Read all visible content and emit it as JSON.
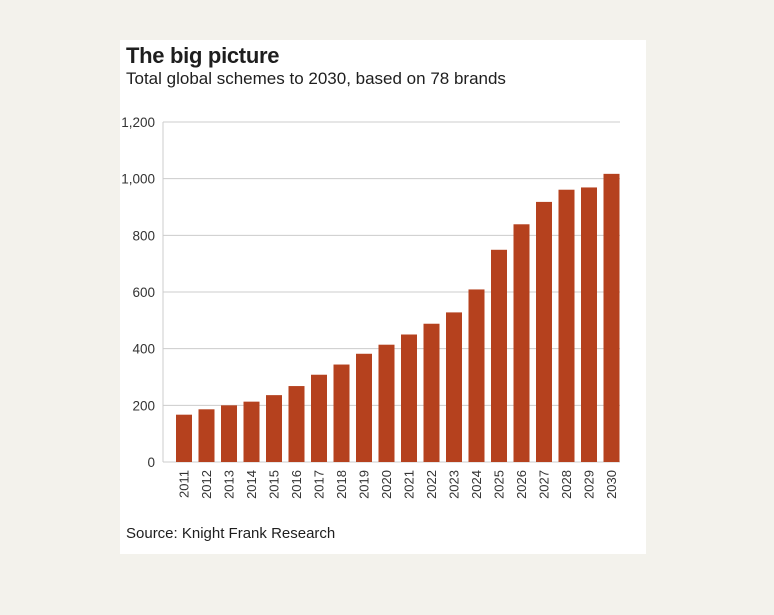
{
  "chart_data": {
    "type": "bar",
    "title": "The big picture",
    "subtitle": "Total global schemes to 2030, based on 78 brands",
    "source": "Source: Knight Frank Research",
    "xlabel": "",
    "ylabel": "",
    "ylim": [
      0,
      1200
    ],
    "yticks": [
      0,
      200,
      400,
      600,
      800,
      1000,
      1200
    ],
    "ytick_labels": [
      "0",
      "200",
      "400",
      "600",
      "800",
      "1,000",
      "1,200"
    ],
    "grid": true,
    "categories": [
      "2011",
      "2012",
      "2013",
      "2014",
      "2015",
      "2016",
      "2017",
      "2018",
      "2019",
      "2020",
      "2021",
      "2022",
      "2023",
      "2024",
      "2025",
      "2026",
      "2027",
      "2028",
      "2029",
      "2030"
    ],
    "values": [
      167,
      186,
      200,
      213,
      236,
      268,
      308,
      344,
      382,
      414,
      450,
      488,
      528,
      609,
      749,
      839,
      918,
      961,
      969,
      1017
    ],
    "bar_color": "#b5411e",
    "grid_color": "#cccccc"
  }
}
